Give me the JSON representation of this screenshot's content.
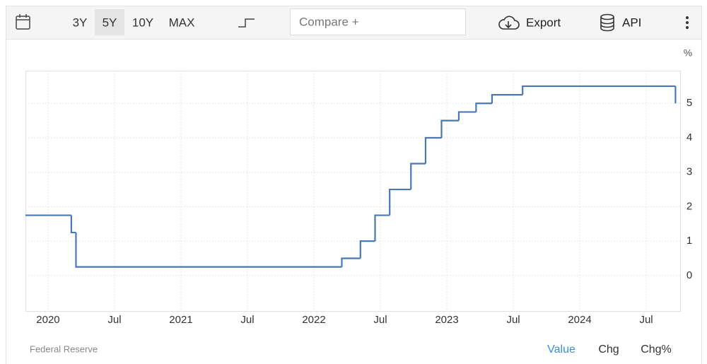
{
  "toolbar": {
    "ranges": [
      "3Y",
      "5Y",
      "10Y",
      "MAX"
    ],
    "compare": "Compare +",
    "export": "Export",
    "api": "API"
  },
  "chart_data": {
    "type": "step",
    "y_label": "%",
    "color": "#4a78b2",
    "grid": true,
    "x": [
      2019.83,
      2020.175,
      2020.21,
      2022.21,
      2022.35,
      2022.46,
      2022.57,
      2022.73,
      2022.84,
      2022.96,
      2023.09,
      2023.22,
      2023.34,
      2023.57,
      2024.72
    ],
    "values": [
      1.75,
      1.25,
      0.25,
      0.5,
      1.0,
      1.75,
      2.5,
      3.25,
      4.0,
      4.5,
      4.75,
      5.0,
      5.25,
      5.5,
      5.0
    ],
    "xlim": [
      2019.83,
      2024.755
    ],
    "xticks": [
      2020,
      {
        "value": 2020.5,
        "label": "Jul"
      },
      2021,
      {
        "value": 2021.5,
        "label": "Jul"
      },
      2022,
      {
        "value": 2022.5,
        "label": "Jul"
      },
      2023,
      {
        "value": 2023.5,
        "label": "Jul"
      },
      2024,
      {
        "value": 2024.5,
        "label": "Jul"
      }
    ],
    "ylim": [
      -1.03,
      5.95
    ],
    "yticks": [
      0,
      1,
      2,
      3,
      4,
      5
    ]
  },
  "footer": {
    "source": "Federal Reserve",
    "tabs": [
      "Value",
      "Chg",
      "Chg%"
    ]
  }
}
